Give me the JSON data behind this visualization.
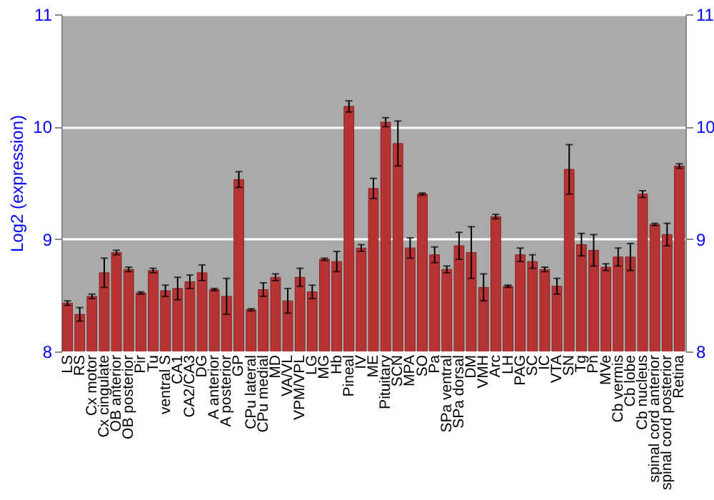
{
  "chart_data": {
    "type": "bar",
    "ylabel": "Log2 (expression)",
    "categories": [
      "LS",
      "RS",
      "Cx motor",
      "Cx cingulate",
      "OB anterior",
      "OB posterior",
      "Pir",
      "Tu",
      "ventral S",
      "CA1",
      "CA2/CA3",
      "DG",
      "A anterior",
      "A posterior",
      "GP",
      "CPu lateral",
      "CPu medial",
      "MD",
      "VA/VL",
      "VPM/VPL",
      "LG",
      "MG",
      "Hb",
      "Pineal",
      "IV",
      "ME",
      "Pituitary",
      "SCN",
      "MPA",
      "SO",
      "Pa",
      "SPa ventral",
      "SPa dorsal",
      "DM",
      "VMH",
      "Arc",
      "LH",
      "PAG",
      "SC",
      "IC",
      "VTA",
      "SN",
      "Tg",
      "Pn",
      "MVe",
      "Cb vermis",
      "Cb lobe",
      "Cb nucleus",
      "spinal cord anterior",
      "spinal cord posterior",
      "Retina"
    ],
    "values": [
      8.43,
      8.33,
      8.49,
      8.7,
      8.88,
      8.73,
      8.52,
      8.72,
      8.54,
      8.56,
      8.62,
      8.7,
      8.55,
      8.49,
      9.53,
      8.37,
      8.55,
      8.66,
      8.45,
      8.66,
      8.53,
      8.82,
      8.8,
      10.18,
      8.92,
      9.45,
      10.04,
      9.85,
      8.92,
      9.4,
      8.86,
      8.73,
      8.94,
      8.88,
      8.57,
      9.2,
      8.58,
      8.86,
      8.8,
      8.73,
      8.58,
      9.62,
      8.95,
      8.9,
      8.75,
      8.84,
      8.84,
      9.4,
      9.13,
      9.04,
      9.65
    ],
    "errors": [
      0.02,
      0.06,
      0.02,
      0.13,
      0.02,
      0.02,
      0.01,
      0.02,
      0.05,
      0.1,
      0.06,
      0.07,
      0.01,
      0.16,
      0.07,
      0.01,
      0.06,
      0.03,
      0.11,
      0.08,
      0.06,
      0.01,
      0.09,
      0.05,
      0.03,
      0.09,
      0.04,
      0.2,
      0.09,
      0.01,
      0.07,
      0.03,
      0.12,
      0.23,
      0.12,
      0.02,
      0.01,
      0.06,
      0.06,
      0.02,
      0.07,
      0.22,
      0.1,
      0.14,
      0.03,
      0.08,
      0.12,
      0.03,
      0.01,
      0.1,
      0.02
    ],
    "color": "#b83434",
    "ylim": [
      8,
      11
    ],
    "yticks": [
      8,
      9,
      10,
      11
    ],
    "y2lim": [
      8,
      11
    ],
    "y2ticks": [
      8,
      9,
      10,
      11
    ],
    "grid": "y"
  }
}
